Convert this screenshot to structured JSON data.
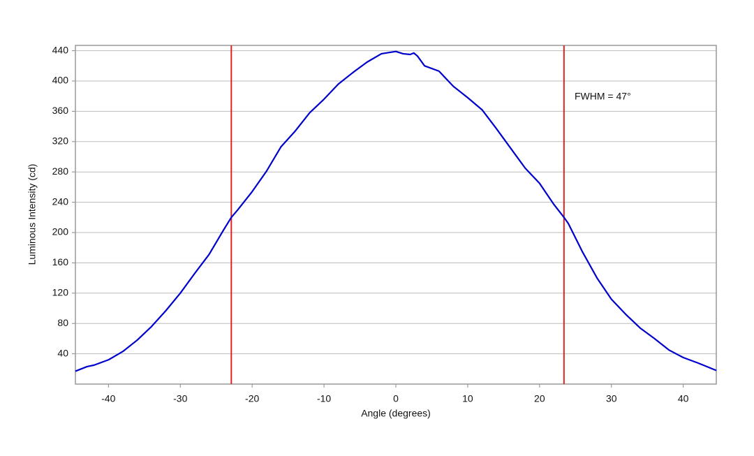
{
  "chart_data": {
    "type": "line",
    "xlabel": "Angle (degrees)",
    "ylabel": "Luminous Intensity (cd)",
    "x": [
      -44.6,
      -43,
      -42,
      -40,
      -38,
      -36,
      -34,
      -32,
      -30,
      -28,
      -26,
      -24,
      -22.9,
      -22,
      -20,
      -18,
      -16,
      -14,
      -12,
      -10,
      -8,
      -6,
      -4,
      -2,
      0,
      1,
      2,
      2.5,
      3,
      4,
      6,
      8,
      10,
      12,
      14,
      16,
      18,
      20,
      22,
      23.4,
      24,
      26,
      28,
      30,
      32,
      34,
      36,
      38,
      40,
      42,
      44.6
    ],
    "series": [
      {
        "color": "#0000cc",
        "values": [
          17,
          23,
          25,
          32,
          43,
          58,
          76,
          97,
          120,
          146,
          171,
          203,
          220,
          230,
          254,
          281,
          313,
          334,
          358,
          376,
          396,
          411,
          425,
          436,
          439,
          436,
          435,
          437,
          433,
          420,
          413,
          393,
          378,
          362,
          337,
          311,
          285,
          265,
          237,
          220,
          212,
          174,
          140,
          112,
          92,
          74,
          60,
          45,
          35,
          28,
          18
        ]
      }
    ],
    "vlines": [
      -22.9,
      23.4
    ],
    "vline_color": "#dd2222",
    "annotation": "FWHM = 47°",
    "xlim": [
      -44.6,
      44.6
    ],
    "ylim": [
      0,
      447
    ],
    "xticks": [
      -40,
      -30,
      -20,
      -10,
      0,
      10,
      20,
      30,
      40
    ],
    "yticks": [
      40,
      80,
      120,
      160,
      200,
      240,
      280,
      320,
      360,
      400,
      440
    ],
    "grid": true
  }
}
